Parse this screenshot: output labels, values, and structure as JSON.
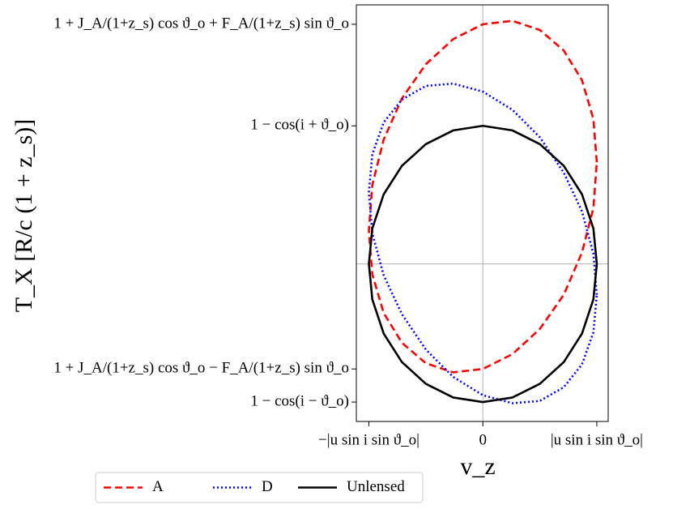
{
  "chart_data": {
    "type": "line",
    "x_label": "v_z",
    "y_label": "T_X [R/c (1 + z_s)]",
    "x": [
      1,
      0.97,
      0.87,
      0.71,
      0.5,
      0.26,
      0,
      -0.26,
      -0.5,
      -0.71,
      -0.87,
      -0.97,
      -1,
      -0.97,
      -0.87,
      -0.71,
      -0.5,
      -0.26,
      0,
      0.26,
      0.5,
      0.71,
      0.87,
      0.97,
      1
    ],
    "series": [
      {
        "name": "A",
        "color": "#ff0000",
        "style": "dashed",
        "values": [
          0.89,
          1.27,
          1.61,
          1.87,
          2.05,
          2.13,
          2.1,
          1.97,
          1.75,
          1.45,
          1.09,
          0.69,
          0.29,
          -0.09,
          -0.43,
          -0.69,
          -0.87,
          -0.95,
          -0.92,
          -0.79,
          -0.57,
          -0.27,
          0.1,
          0.49,
          0.89
        ]
      },
      {
        "name": "D",
        "color": "#0000ff",
        "style": "dotted",
        "values": [
          -0.27,
          0.09,
          0.46,
          0.8,
          1.11,
          1.35,
          1.51,
          1.58,
          1.56,
          1.44,
          1.24,
          0.96,
          0.63,
          0.27,
          -0.1,
          -0.44,
          -0.75,
          -0.99,
          -1.15,
          -1.22,
          -1.2,
          -1.08,
          -0.88,
          -0.6,
          -0.27
        ]
      },
      {
        "name": "Unlensed",
        "color": "#000000",
        "style": "solid",
        "values": [
          0,
          0.31,
          0.61,
          0.86,
          1.05,
          1.17,
          1.21,
          1.17,
          1.05,
          0.86,
          0.61,
          0.31,
          0,
          -0.31,
          -0.61,
          -0.86,
          -1.05,
          -1.17,
          -1.21,
          -1.17,
          -1.05,
          -0.86,
          -0.61,
          -0.31,
          0
        ]
      }
    ],
    "xlim": [
      -1.11,
      1.1
    ],
    "ylim": [
      -1.38,
      2.27
    ],
    "xticks": [
      {
        "value": -1,
        "label": "−|u sin i sin ϑ_o|"
      },
      0,
      {
        "value": 1,
        "label": "|u sin i sin ϑ_o|"
      }
    ],
    "yticks": [
      {
        "value": -1.21,
        "label": "1 − cos(i − ϑ_o)"
      },
      {
        "value": -0.92,
        "label": "1 + J_A/(1+z_s) cos ϑ_o − F_A/(1+z_s) sin ϑ_o"
      },
      {
        "value": 1.21,
        "label": "1 − cos(i + ϑ_o)"
      },
      {
        "value": 2.1,
        "label": "1 + J_A/(1+z_s) cos ϑ_o + F_A/(1+z_s) sin ϑ_o"
      }
    ],
    "zero_lines": true,
    "legend": "lower center"
  }
}
